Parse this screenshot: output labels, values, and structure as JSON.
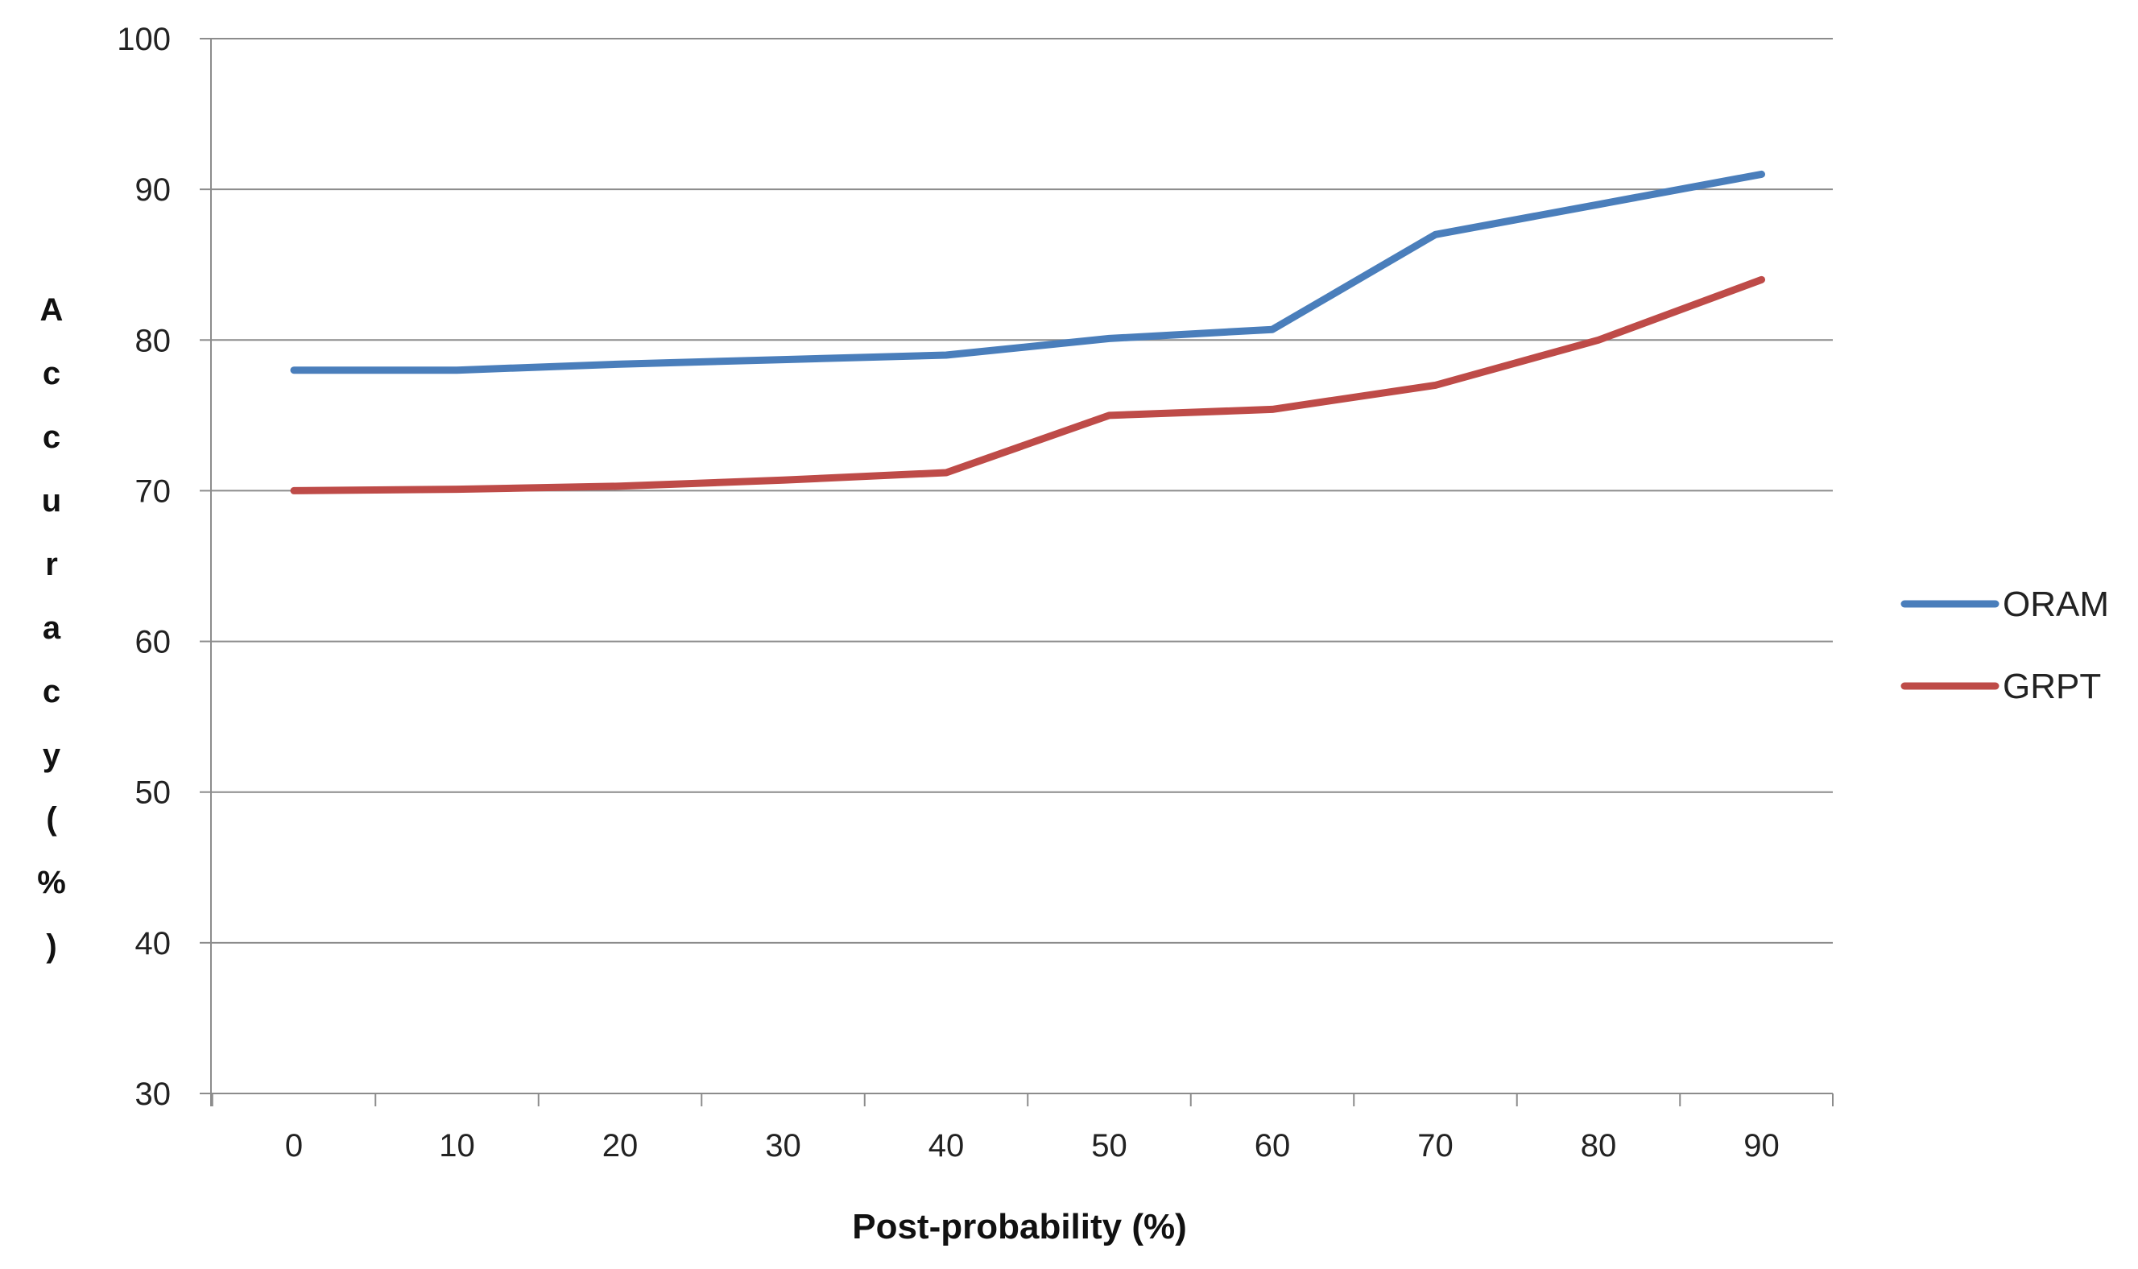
{
  "chart_data": {
    "type": "line",
    "title": "",
    "xlabel": "Post-probability (%)",
    "ylabel": "Accuracy(%)",
    "x": [
      0,
      10,
      20,
      30,
      40,
      50,
      60,
      70,
      80,
      90
    ],
    "xticks": [
      "0",
      "10",
      "20",
      "30",
      "40",
      "50",
      "60",
      "70",
      "80",
      "90"
    ],
    "yticks": [
      "30",
      "40",
      "50",
      "60",
      "70",
      "80",
      "90",
      "100"
    ],
    "ylim": [
      30,
      100
    ],
    "grid": "horizontal",
    "legend_position": "right",
    "series": [
      {
        "name": "ORAM",
        "color": "#4a7ebb",
        "values": [
          78,
          78,
          78.4,
          78.7,
          79,
          80.1,
          80.7,
          87,
          89,
          91
        ]
      },
      {
        "name": "GRPT",
        "color": "#be4b48",
        "values": [
          70,
          70.1,
          70.3,
          70.7,
          71.2,
          75,
          75.4,
          77,
          80,
          84
        ]
      }
    ]
  }
}
